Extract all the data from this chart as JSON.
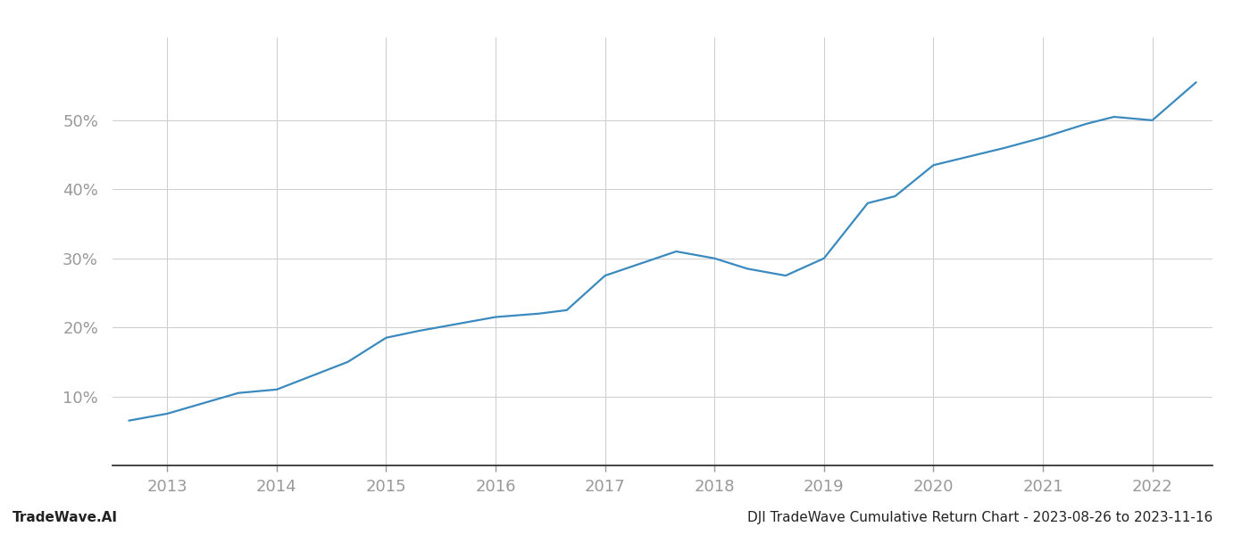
{
  "title_bottom": "DJI TradeWave Cumulative Return Chart - 2023-08-26 to 2023-11-16",
  "watermark": "TradeWave.AI",
  "line_color": "#3a8abf",
  "background_color": "#ffffff",
  "grid_color": "#cccccc",
  "x_years": [
    2013,
    2014,
    2015,
    2016,
    2017,
    2018,
    2019,
    2020,
    2021,
    2022
  ],
  "x_values": [
    2012.65,
    2013.0,
    2013.65,
    2014.0,
    2014.65,
    2015.0,
    2015.3,
    2015.65,
    2016.0,
    2016.4,
    2016.65,
    2017.0,
    2017.65,
    2018.0,
    2018.3,
    2018.65,
    2019.0,
    2019.4,
    2019.65,
    2020.0,
    2020.65,
    2021.0,
    2021.4,
    2021.65,
    2022.0,
    2022.4
  ],
  "y_values": [
    6.5,
    7.5,
    10.5,
    11.0,
    15.0,
    18.5,
    19.5,
    20.5,
    21.5,
    22.0,
    22.5,
    27.5,
    31.0,
    30.0,
    28.5,
    27.5,
    30.0,
    38.0,
    39.0,
    43.5,
    46.0,
    47.5,
    49.5,
    50.5,
    50.0,
    55.5
  ],
  "ylim": [
    0,
    62
  ],
  "xlim": [
    2012.5,
    2022.55
  ],
  "yticks": [
    10,
    20,
    30,
    40,
    50
  ],
  "figsize": [
    14,
    6
  ],
  "dpi": 100,
  "spine_color": "#222222",
  "tick_label_color": "#999999",
  "title_color": "#222222",
  "watermark_color": "#222222",
  "line_width": 1.6,
  "font_size_ticks": 13,
  "font_size_bottom": 11
}
